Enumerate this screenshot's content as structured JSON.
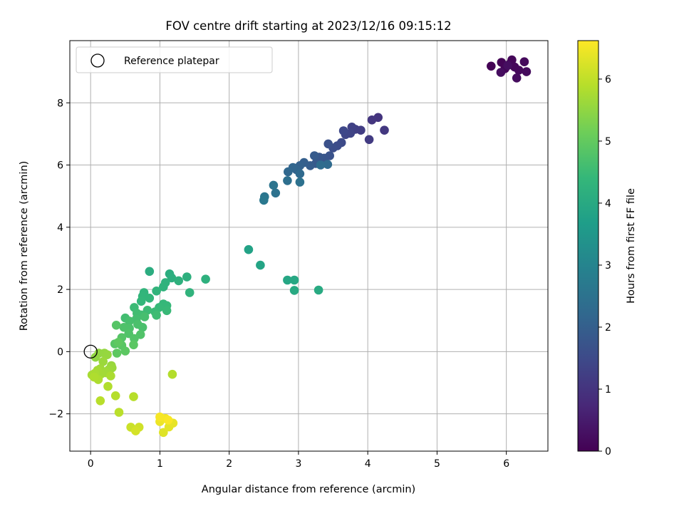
{
  "chart_data": {
    "type": "scatter",
    "title": "FOV centre drift starting at 2023/12/16 09:15:12",
    "xlabel": "Angular distance from reference (arcmin)",
    "ylabel": "Rotation from reference (arcmin)",
    "xlim": [
      -0.3,
      6.6
    ],
    "ylim": [
      -3.2,
      10.0
    ],
    "xticks": [
      0,
      1,
      2,
      3,
      4,
      5,
      6
    ],
    "yticks": [
      -2,
      0,
      2,
      4,
      6,
      8
    ],
    "xtick_labels": [
      "0",
      "1",
      "2",
      "3",
      "4",
      "5",
      "6"
    ],
    "ytick_labels": [
      "−2",
      "0",
      "2",
      "4",
      "6",
      "8"
    ],
    "grid": true,
    "legend": {
      "placement": "top-left",
      "entry": "Reference platepar"
    },
    "reference_point": {
      "x": 0,
      "y": 0
    },
    "colorbar": {
      "label": "Hours from first FF file",
      "range": [
        0,
        6.62
      ],
      "ticks": [
        0,
        1,
        2,
        3,
        4,
        5,
        6
      ],
      "tick_labels": [
        "0",
        "1",
        "2",
        "3",
        "4",
        "5",
        "6"
      ],
      "colormap": "viridis"
    },
    "colormap_stops": [
      "#440154",
      "#482878",
      "#3e4989",
      "#31688e",
      "#26828e",
      "#1f9e89",
      "#35b779",
      "#6ece58",
      "#b5de2b",
      "#fde725"
    ],
    "points": [
      [
        5.78,
        9.18,
        0.03
      ],
      [
        5.93,
        9.3,
        0.05
      ],
      [
        5.98,
        9.1,
        0.07
      ],
      [
        6.05,
        9.25,
        0.09
      ],
      [
        6.08,
        9.38,
        0.11
      ],
      [
        6.12,
        9.15,
        0.13
      ],
      [
        6.18,
        9.05,
        0.15
      ],
      [
        6.26,
        9.32,
        0.17
      ],
      [
        6.29,
        9.0,
        0.19
      ],
      [
        6.15,
        8.8,
        0.21
      ],
      [
        5.92,
        8.98,
        0.23
      ],
      [
        6.02,
        9.2,
        0.25
      ],
      [
        4.15,
        7.53,
        1.0
      ],
      [
        4.06,
        7.45,
        1.05
      ],
      [
        4.24,
        7.12,
        1.1
      ],
      [
        4.02,
        6.82,
        1.15
      ],
      [
        3.9,
        7.12,
        1.2
      ],
      [
        3.82,
        7.15,
        1.25
      ],
      [
        3.77,
        7.22,
        1.3
      ],
      [
        3.75,
        7.02,
        1.35
      ],
      [
        3.68,
        6.98,
        1.4
      ],
      [
        3.65,
        7.1,
        1.45
      ],
      [
        3.62,
        6.72,
        1.5
      ],
      [
        3.56,
        6.62,
        1.55
      ],
      [
        3.5,
        6.55,
        1.6
      ],
      [
        3.43,
        6.68,
        1.65
      ],
      [
        3.45,
        6.3,
        1.7
      ],
      [
        3.37,
        6.22,
        1.75
      ],
      [
        3.3,
        6.25,
        1.8
      ],
      [
        3.25,
        6.05,
        1.85
      ],
      [
        3.23,
        6.3,
        1.9
      ],
      [
        3.17,
        5.98,
        1.95
      ],
      [
        3.08,
        6.08,
        2.0
      ],
      [
        3.02,
        5.98,
        2.05
      ],
      [
        2.97,
        5.85,
        2.1
      ],
      [
        2.92,
        5.92,
        2.15
      ],
      [
        2.85,
        5.78,
        2.2
      ],
      [
        3.02,
        5.72,
        2.25
      ],
      [
        3.42,
        6.02,
        2.3
      ],
      [
        3.32,
        6.0,
        2.35
      ],
      [
        2.84,
        5.5,
        2.4
      ],
      [
        3.02,
        5.45,
        2.45
      ],
      [
        2.67,
        5.1,
        2.5
      ],
      [
        2.64,
        5.35,
        2.55
      ],
      [
        2.51,
        4.98,
        2.6
      ],
      [
        2.5,
        4.87,
        2.65
      ],
      [
        2.28,
        3.28,
        3.8
      ],
      [
        2.45,
        2.78,
        3.85
      ],
      [
        2.84,
        2.3,
        3.9
      ],
      [
        2.94,
        2.3,
        3.95
      ],
      [
        2.94,
        1.97,
        4.0
      ],
      [
        3.29,
        1.98,
        4.02
      ],
      [
        0.85,
        2.58,
        4.1
      ],
      [
        1.14,
        2.5,
        4.12
      ],
      [
        1.17,
        2.37,
        4.15
      ],
      [
        1.39,
        2.4,
        4.18
      ],
      [
        1.66,
        2.33,
        4.2
      ],
      [
        1.27,
        2.28,
        4.22
      ],
      [
        1.08,
        2.22,
        4.24
      ],
      [
        1.05,
        2.08,
        4.26
      ],
      [
        1.43,
        1.9,
        4.28
      ],
      [
        0.95,
        1.95,
        4.3
      ],
      [
        0.77,
        1.9,
        4.32
      ],
      [
        0.75,
        1.78,
        4.34
      ],
      [
        0.85,
        1.72,
        4.36
      ],
      [
        0.73,
        1.62,
        4.38
      ],
      [
        1.05,
        1.53,
        4.4
      ],
      [
        1.1,
        1.48,
        4.42
      ],
      [
        0.99,
        1.42,
        4.44
      ],
      [
        1.1,
        1.32,
        4.46
      ],
      [
        0.93,
        1.28,
        4.48
      ],
      [
        0.63,
        1.42,
        4.5
      ],
      [
        0.82,
        1.33,
        4.52
      ],
      [
        0.95,
        1.17,
        4.54
      ],
      [
        0.73,
        1.18,
        4.56
      ],
      [
        0.67,
        1.23,
        4.58
      ],
      [
        0.5,
        1.08,
        4.6
      ],
      [
        0.66,
        1.05,
        4.62
      ],
      [
        0.78,
        1.12,
        4.64
      ],
      [
        0.56,
        0.98,
        4.66
      ],
      [
        0.75,
        0.78,
        4.68
      ],
      [
        0.68,
        0.88,
        4.7
      ],
      [
        0.56,
        0.75,
        4.72
      ],
      [
        0.48,
        0.78,
        4.74
      ],
      [
        0.55,
        0.58,
        4.76
      ],
      [
        0.72,
        0.55,
        4.78
      ],
      [
        0.63,
        0.42,
        4.8
      ],
      [
        0.45,
        0.45,
        4.82
      ],
      [
        0.37,
        0.85,
        4.84
      ],
      [
        0.35,
        0.25,
        4.86
      ],
      [
        0.45,
        0.2,
        4.88
      ],
      [
        0.62,
        0.22,
        4.9
      ],
      [
        0.5,
        0.02,
        4.92
      ],
      [
        0.38,
        -0.05,
        4.94
      ],
      [
        0.4,
        0.3,
        4.96
      ],
      [
        0.07,
        -0.18,
        5.5
      ],
      [
        0.12,
        -0.05,
        5.52
      ],
      [
        0.2,
        -0.05,
        5.54
      ],
      [
        0.24,
        -0.1,
        5.56
      ],
      [
        0.3,
        -0.45,
        5.58
      ],
      [
        0.31,
        -0.52,
        5.6
      ],
      [
        0.18,
        -0.32,
        5.62
      ],
      [
        0.26,
        -0.58,
        5.64
      ],
      [
        0.14,
        -0.55,
        5.66
      ],
      [
        0.22,
        -0.68,
        5.68
      ],
      [
        0.15,
        -0.72,
        5.7
      ],
      [
        0.1,
        -0.6,
        5.72
      ],
      [
        0.02,
        -0.75,
        5.74
      ],
      [
        0.06,
        -0.7,
        5.76
      ],
      [
        0.29,
        -0.78,
        5.78
      ],
      [
        0.11,
        -0.9,
        5.8
      ],
      [
        0.05,
        -0.82,
        5.82
      ],
      [
        0.25,
        -1.12,
        5.84
      ],
      [
        1.18,
        -0.73,
        5.86
      ],
      [
        0.36,
        -1.42,
        5.88
      ],
      [
        0.62,
        -1.45,
        5.9
      ],
      [
        0.14,
        -1.58,
        5.92
      ],
      [
        0.41,
        -1.95,
        5.94
      ],
      [
        0.58,
        -2.43,
        6.1
      ],
      [
        0.7,
        -2.43,
        6.15
      ],
      [
        0.65,
        -2.55,
        6.2
      ],
      [
        1.05,
        -2.6,
        6.3
      ],
      [
        1.13,
        -2.42,
        6.35
      ],
      [
        1.19,
        -2.3,
        6.4
      ],
      [
        1.0,
        -2.25,
        6.45
      ],
      [
        1.08,
        -2.15,
        6.5
      ],
      [
        1.0,
        -2.1,
        6.55
      ],
      [
        1.12,
        -2.2,
        6.58
      ]
    ]
  }
}
